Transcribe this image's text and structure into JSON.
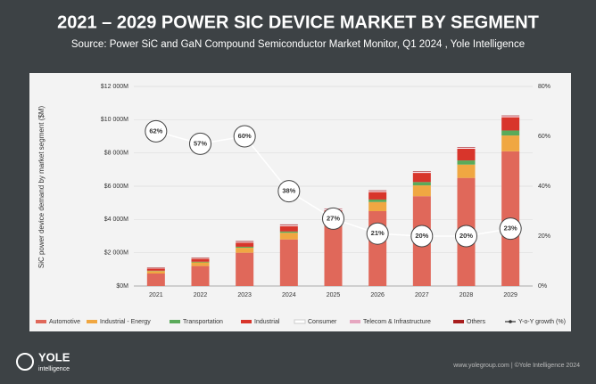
{
  "chart_data": {
    "type": "bar",
    "stacked": true,
    "title": "2021 – 2029 POWER SIC DEVICE MARKET BY SEGMENT",
    "subtitle": "Source: Power SiC and GaN Compound Semiconductor Market Monitor, Q1 2024 , Yole Intelligence",
    "y_label": "SiC power device demand by market segment ($M)",
    "categories": [
      "2021",
      "2022",
      "2023",
      "2024",
      "2025",
      "2026",
      "2027",
      "2028",
      "2029"
    ],
    "ylim": [
      0,
      12000
    ],
    "yticks": [
      {
        "value": 0,
        "label": "$0M"
      },
      {
        "value": 2000,
        "label": "$2 000M"
      },
      {
        "value": 4000,
        "label": "$4 000M"
      },
      {
        "value": 6000,
        "label": "$6 000M"
      },
      {
        "value": 8000,
        "label": "$8 000M"
      },
      {
        "value": 10000,
        "label": "$10 000M"
      },
      {
        "value": 12000,
        "label": "$12 000M"
      }
    ],
    "y2lim": [
      0,
      80
    ],
    "y2ticks": [
      {
        "value": 0,
        "label": "0%"
      },
      {
        "value": 20,
        "label": "20%"
      },
      {
        "value": 40,
        "label": "40%"
      },
      {
        "value": 60,
        "label": "60%"
      },
      {
        "value": 80,
        "label": "80%"
      }
    ],
    "grid": true,
    "series": [
      {
        "name": "Automotive",
        "color": "#e0685a",
        "values": [
          750,
          1200,
          2000,
          2800,
          3650,
          4500,
          5400,
          6500,
          8100
        ]
      },
      {
        "name": "Industrial - Energy",
        "color": "#f0a742",
        "values": [
          150,
          220,
          300,
          400,
          450,
          550,
          650,
          800,
          950
        ]
      },
      {
        "name": "Transportation",
        "color": "#5aaa5a",
        "values": [
          20,
          40,
          60,
          80,
          100,
          150,
          200,
          250,
          300
        ]
      },
      {
        "name": "Industrial",
        "color": "#d8352b",
        "values": [
          130,
          180,
          250,
          320,
          350,
          450,
          550,
          700,
          800
        ]
      },
      {
        "name": "Consumer",
        "color": "#ffffff",
        "values": [
          10,
          20,
          30,
          40,
          50,
          40,
          40,
          40,
          40
        ]
      },
      {
        "name": "Telecom & Infrastructure",
        "color": "#e6a6c0",
        "values": [
          10,
          10,
          20,
          20,
          30,
          30,
          30,
          30,
          30
        ]
      },
      {
        "name": "Others",
        "color": "#a81e1e",
        "values": [
          30,
          30,
          40,
          40,
          20,
          30,
          30,
          30,
          30
        ]
      },
      {
        "name": "Y-o-Y growth (%)",
        "type": "line",
        "axis": "y2",
        "color": "#ffffff",
        "values": [
          62,
          57,
          60,
          38,
          27,
          21,
          20,
          20,
          23
        ],
        "value_labels": [
          "62%",
          "57%",
          "60%",
          "38%",
          "27%",
          "21%",
          "20%",
          "20%",
          "23%"
        ]
      }
    ],
    "logo": "YOLE",
    "logo_sub": "intelligence",
    "footer": "www.yolegroup.com | ©Yole Intelligence 2024"
  }
}
